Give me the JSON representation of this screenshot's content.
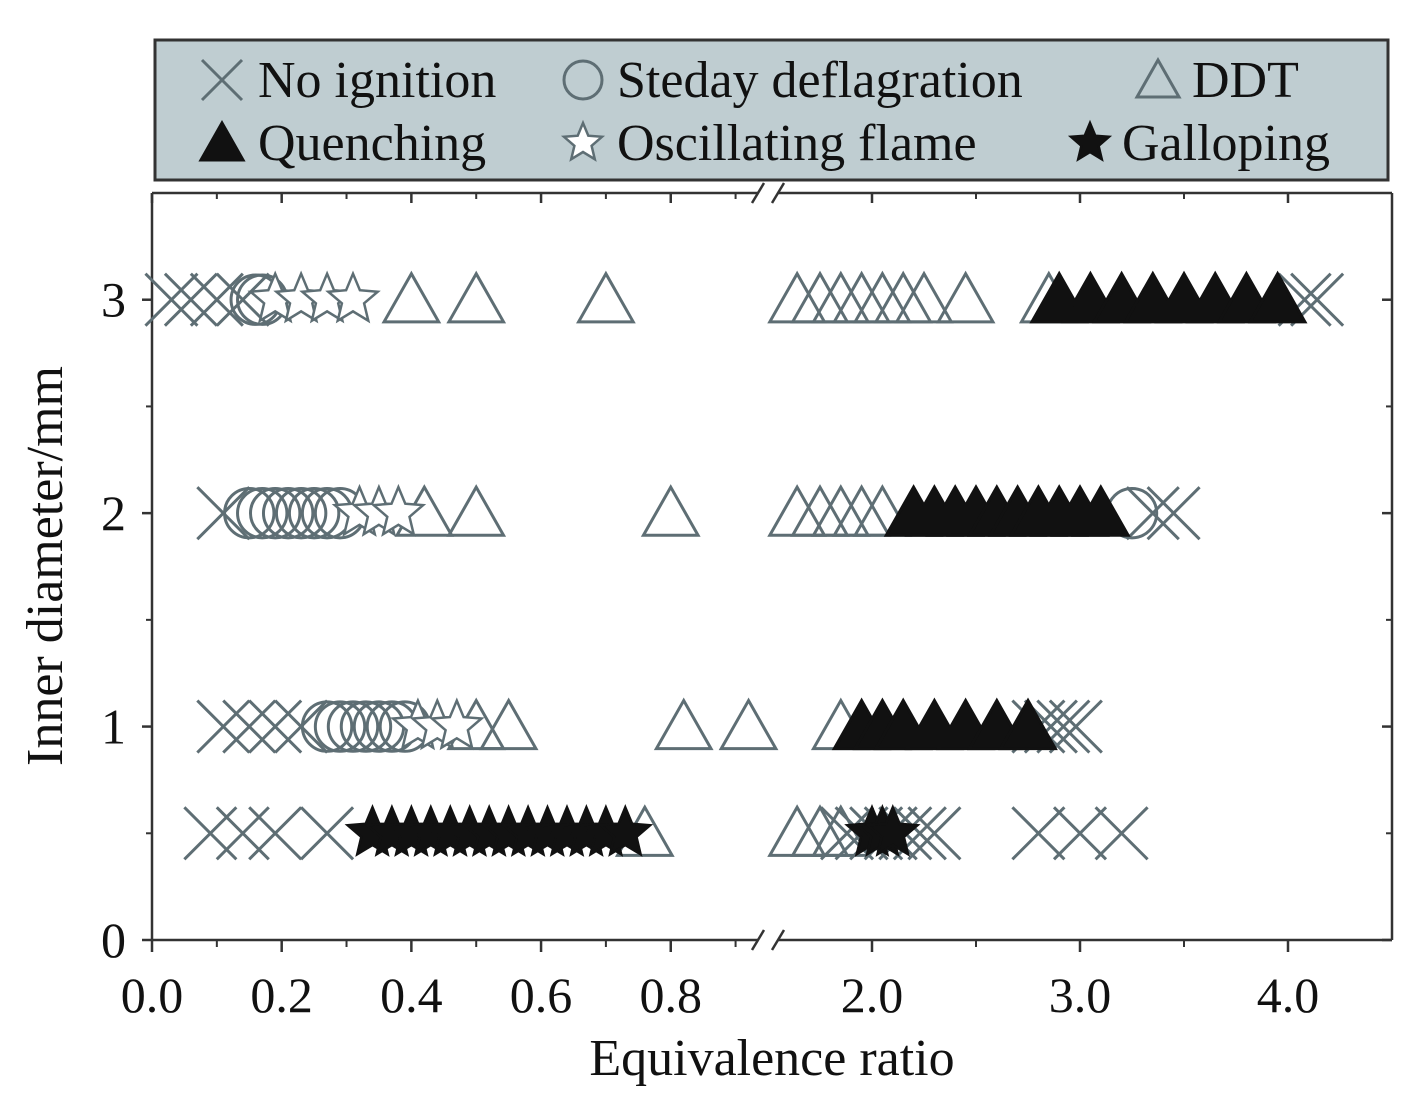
{
  "chart_data": {
    "type": "scatter",
    "xlabel": "Equivalence ratio",
    "ylabel": "Inner diameter/mm",
    "x_axis_broken": true,
    "x_segments": [
      {
        "xlim": [
          0.0,
          0.95
        ],
        "ticks": [
          "0.0",
          "0.2",
          "0.4",
          "0.6",
          "0.8"
        ],
        "tick_values": [
          0.0,
          0.2,
          0.4,
          0.6,
          0.8
        ]
      },
      {
        "xlim": [
          1.5,
          4.5
        ],
        "ticks": [
          "2.0",
          "3.0",
          "4.0"
        ],
        "tick_values": [
          2.0,
          3.0,
          4.0
        ]
      }
    ],
    "ylim": [
      0,
      3.5
    ],
    "yticks": [
      "0",
      "1",
      "2",
      "3"
    ],
    "ytick_values": [
      0,
      1,
      2,
      3
    ],
    "legend_position": "top (outside plot)",
    "legend": [
      {
        "key": "no_ignition",
        "label": "No ignition",
        "marker": "x"
      },
      {
        "key": "steady",
        "label": "Steday deflagration",
        "marker": "circle-open"
      },
      {
        "key": "ddt",
        "label": "DDT",
        "marker": "triangle-open"
      },
      {
        "key": "quenching",
        "label": "Quenching",
        "marker": "triangle-filled"
      },
      {
        "key": "oscillating",
        "label": "Oscillating flame",
        "marker": "star-open"
      },
      {
        "key": "galloping",
        "label": "Galloping",
        "marker": "star-filled"
      }
    ],
    "series": [
      {
        "key": "no_ignition",
        "points": [
          {
            "x": 0.03,
            "y": 3
          },
          {
            "x": 0.06,
            "y": 3
          },
          {
            "x": 0.1,
            "y": 3
          },
          {
            "x": 0.14,
            "y": 3
          },
          {
            "x": 4.08,
            "y": 3
          },
          {
            "x": 4.14,
            "y": 3
          },
          {
            "x": 0.11,
            "y": 2
          },
          {
            "x": 3.35,
            "y": 2
          },
          {
            "x": 3.45,
            "y": 2
          },
          {
            "x": 0.11,
            "y": 1
          },
          {
            "x": 0.15,
            "y": 1
          },
          {
            "x": 0.19,
            "y": 1
          },
          {
            "x": 0.23,
            "y": 1
          },
          {
            "x": 2.8,
            "y": 1
          },
          {
            "x": 2.86,
            "y": 1
          },
          {
            "x": 2.92,
            "y": 1
          },
          {
            "x": 2.98,
            "y": 1
          },
          {
            "x": 0.09,
            "y": 0.5
          },
          {
            "x": 0.14,
            "y": 0.5
          },
          {
            "x": 0.19,
            "y": 0.5
          },
          {
            "x": 0.27,
            "y": 0.5
          },
          {
            "x": 1.88,
            "y": 0.5
          },
          {
            "x": 1.95,
            "y": 0.5
          },
          {
            "x": 2.02,
            "y": 0.5
          },
          {
            "x": 2.09,
            "y": 0.5
          },
          {
            "x": 2.16,
            "y": 0.5
          },
          {
            "x": 2.23,
            "y": 0.5
          },
          {
            "x": 2.3,
            "y": 0.5
          },
          {
            "x": 2.8,
            "y": 0.5
          },
          {
            "x": 3.0,
            "y": 0.5
          },
          {
            "x": 3.2,
            "y": 0.5
          }
        ]
      },
      {
        "key": "steady",
        "points": [
          {
            "x": 0.16,
            "y": 3
          },
          {
            "x": 0.17,
            "y": 3
          },
          {
            "x": 0.15,
            "y": 2
          },
          {
            "x": 0.17,
            "y": 2
          },
          {
            "x": 0.19,
            "y": 2
          },
          {
            "x": 0.21,
            "y": 2
          },
          {
            "x": 0.23,
            "y": 2
          },
          {
            "x": 0.25,
            "y": 2
          },
          {
            "x": 0.27,
            "y": 2
          },
          {
            "x": 0.29,
            "y": 2
          },
          {
            "x": 3.25,
            "y": 2
          },
          {
            "x": 0.27,
            "y": 1
          },
          {
            "x": 0.29,
            "y": 1
          },
          {
            "x": 0.31,
            "y": 1
          },
          {
            "x": 0.33,
            "y": 1
          },
          {
            "x": 0.35,
            "y": 1
          },
          {
            "x": 0.37,
            "y": 1
          },
          {
            "x": 0.39,
            "y": 1
          }
        ]
      },
      {
        "key": "ddt",
        "points": [
          {
            "x": 0.4,
            "y": 3
          },
          {
            "x": 0.5,
            "y": 3
          },
          {
            "x": 0.7,
            "y": 3
          },
          {
            "x": 1.64,
            "y": 3
          },
          {
            "x": 1.75,
            "y": 3
          },
          {
            "x": 1.85,
            "y": 3
          },
          {
            "x": 1.95,
            "y": 3
          },
          {
            "x": 2.05,
            "y": 3
          },
          {
            "x": 2.15,
            "y": 3
          },
          {
            "x": 2.25,
            "y": 3
          },
          {
            "x": 2.45,
            "y": 3
          },
          {
            "x": 2.85,
            "y": 3
          },
          {
            "x": 0.42,
            "y": 2
          },
          {
            "x": 0.5,
            "y": 2
          },
          {
            "x": 0.8,
            "y": 2
          },
          {
            "x": 1.64,
            "y": 2
          },
          {
            "x": 1.75,
            "y": 2
          },
          {
            "x": 1.85,
            "y": 2
          },
          {
            "x": 1.95,
            "y": 2
          },
          {
            "x": 2.05,
            "y": 2
          },
          {
            "x": 0.5,
            "y": 1
          },
          {
            "x": 0.55,
            "y": 1
          },
          {
            "x": 0.82,
            "y": 1
          },
          {
            "x": 0.92,
            "y": 1
          },
          {
            "x": 1.85,
            "y": 1
          },
          {
            "x": 0.76,
            "y": 0.5
          },
          {
            "x": 1.64,
            "y": 0.5
          },
          {
            "x": 1.75,
            "y": 0.5
          },
          {
            "x": 1.85,
            "y": 0.5
          }
        ]
      },
      {
        "key": "quenching",
        "points": [
          {
            "x": 2.9,
            "y": 3
          },
          {
            "x": 3.05,
            "y": 3
          },
          {
            "x": 3.2,
            "y": 3
          },
          {
            "x": 3.35,
            "y": 3
          },
          {
            "x": 3.5,
            "y": 3
          },
          {
            "x": 3.65,
            "y": 3
          },
          {
            "x": 3.8,
            "y": 3
          },
          {
            "x": 3.95,
            "y": 3
          },
          {
            "x": 2.2,
            "y": 2
          },
          {
            "x": 2.3,
            "y": 2
          },
          {
            "x": 2.4,
            "y": 2
          },
          {
            "x": 2.5,
            "y": 2
          },
          {
            "x": 2.6,
            "y": 2
          },
          {
            "x": 2.7,
            "y": 2
          },
          {
            "x": 2.8,
            "y": 2
          },
          {
            "x": 2.9,
            "y": 2
          },
          {
            "x": 3.0,
            "y": 2
          },
          {
            "x": 3.1,
            "y": 2
          },
          {
            "x": 1.95,
            "y": 1
          },
          {
            "x": 2.05,
            "y": 1
          },
          {
            "x": 2.15,
            "y": 1
          },
          {
            "x": 2.3,
            "y": 1
          },
          {
            "x": 2.45,
            "y": 1
          },
          {
            "x": 2.6,
            "y": 1
          },
          {
            "x": 2.75,
            "y": 1
          }
        ]
      },
      {
        "key": "oscillating",
        "points": [
          {
            "x": 0.19,
            "y": 3
          },
          {
            "x": 0.23,
            "y": 3
          },
          {
            "x": 0.27,
            "y": 3
          },
          {
            "x": 0.31,
            "y": 3
          },
          {
            "x": 0.32,
            "y": 2
          },
          {
            "x": 0.35,
            "y": 2
          },
          {
            "x": 0.38,
            "y": 2
          },
          {
            "x": 0.41,
            "y": 1
          },
          {
            "x": 0.44,
            "y": 1
          },
          {
            "x": 0.47,
            "y": 1
          }
        ]
      },
      {
        "key": "galloping",
        "points": [
          {
            "x": 0.34,
            "y": 0.5
          },
          {
            "x": 0.37,
            "y": 0.5
          },
          {
            "x": 0.4,
            "y": 0.5
          },
          {
            "x": 0.43,
            "y": 0.5
          },
          {
            "x": 0.46,
            "y": 0.5
          },
          {
            "x": 0.49,
            "y": 0.5
          },
          {
            "x": 0.52,
            "y": 0.5
          },
          {
            "x": 0.55,
            "y": 0.5
          },
          {
            "x": 0.58,
            "y": 0.5
          },
          {
            "x": 0.61,
            "y": 0.5
          },
          {
            "x": 0.64,
            "y": 0.5
          },
          {
            "x": 0.67,
            "y": 0.5
          },
          {
            "x": 0.7,
            "y": 0.5
          },
          {
            "x": 0.73,
            "y": 0.5
          },
          {
            "x": 2.0,
            "y": 0.5
          },
          {
            "x": 2.05,
            "y": 0.5
          },
          {
            "x": 2.1,
            "y": 0.5
          }
        ]
      }
    ]
  }
}
